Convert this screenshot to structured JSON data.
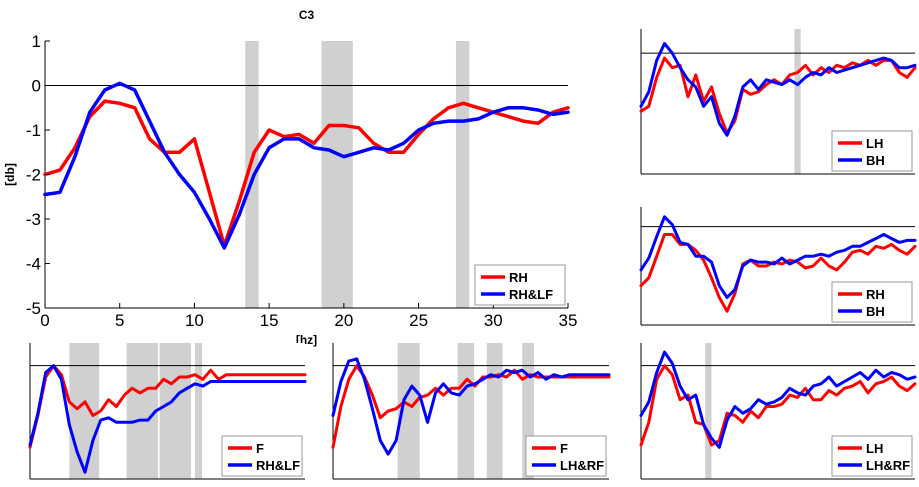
{
  "chart_data": [
    {
      "type": "line",
      "title": "C3",
      "xlabel": "[hz]",
      "ylabel": "[db]",
      "xlim": [
        0,
        35
      ],
      "ylim": [
        -5,
        1
      ],
      "xticks": [
        0,
        5,
        10,
        15,
        20,
        25,
        30,
        35
      ],
      "yticks": [
        1,
        0,
        -1,
        -2,
        -3,
        -4,
        -5
      ],
      "grid": false,
      "legend": "bottom-right",
      "zero_line": 0,
      "shaded_bands": [
        [
          13.4,
          14.3
        ],
        [
          18.5,
          20.6
        ],
        [
          27.5,
          28.4
        ]
      ],
      "x": [
        0,
        1,
        2,
        3,
        4,
        5,
        6,
        7,
        8,
        9,
        10,
        11,
        12,
        13,
        14,
        15,
        16,
        17,
        18,
        19,
        20,
        21,
        22,
        23,
        24,
        25,
        26,
        27,
        28,
        29,
        30,
        31,
        32,
        33,
        34,
        35
      ],
      "series": [
        {
          "name": "RH",
          "color": "#ff0000",
          "values": [
            -2.0,
            -1.9,
            -1.4,
            -0.7,
            -0.35,
            -0.4,
            -0.5,
            -1.2,
            -1.5,
            -1.5,
            -1.2,
            -2.4,
            -3.6,
            -2.6,
            -1.5,
            -1.0,
            -1.15,
            -1.1,
            -1.3,
            -0.9,
            -0.9,
            -0.95,
            -1.3,
            -1.5,
            -1.5,
            -1.1,
            -0.75,
            -0.5,
            -0.4,
            -0.5,
            -0.6,
            -0.7,
            -0.8,
            -0.85,
            -0.6,
            -0.5
          ]
        },
        {
          "name": "RH&LF",
          "color": "#0000ff",
          "values": [
            -2.45,
            -2.4,
            -1.6,
            -0.6,
            -0.1,
            0.05,
            -0.1,
            -0.8,
            -1.5,
            -2.0,
            -2.4,
            -3.0,
            -3.65,
            -2.9,
            -2.0,
            -1.4,
            -1.2,
            -1.2,
            -1.4,
            -1.45,
            -1.6,
            -1.5,
            -1.4,
            -1.45,
            -1.3,
            -1.0,
            -0.85,
            -0.8,
            -0.8,
            -0.75,
            -0.6,
            -0.5,
            -0.5,
            -0.55,
            -0.65,
            -0.6
          ]
        }
      ]
    },
    {
      "type": "line",
      "xlim": [
        0,
        35
      ],
      "ylim": [
        -5,
        1
      ],
      "zero_line": 0,
      "legend": "bottom-right",
      "shaded_bands": [
        [
          19.6,
          20.4
        ]
      ],
      "x": [
        0,
        1,
        2,
        3,
        4,
        5,
        6,
        7,
        8,
        9,
        10,
        11,
        12,
        13,
        14,
        15,
        16,
        17,
        18,
        19,
        20,
        21,
        22,
        23,
        24,
        25,
        26,
        27,
        28,
        29,
        30,
        31,
        32,
        33,
        34,
        35
      ],
      "series": [
        {
          "name": "LH",
          "color": "#ff0000",
          "values": [
            -2.4,
            -2.2,
            -1.0,
            -0.2,
            -0.6,
            -0.5,
            -1.8,
            -0.9,
            -2.0,
            -1.4,
            -2.5,
            -3.3,
            -2.8,
            -1.5,
            -1.7,
            -1.6,
            -1.3,
            -1.1,
            -1.3,
            -0.9,
            -0.8,
            -0.5,
            -0.9,
            -0.6,
            -0.8,
            -0.5,
            -0.6,
            -0.4,
            -0.5,
            -0.3,
            -0.5,
            -0.3,
            -0.3,
            -0.8,
            -1.0,
            -0.6
          ]
        },
        {
          "name": "BH",
          "color": "#0000ff",
          "values": [
            -2.2,
            -1.6,
            -0.3,
            0.4,
            0.0,
            -0.6,
            -1.1,
            -1.4,
            -2.2,
            -1.8,
            -2.9,
            -3.4,
            -2.6,
            -1.4,
            -1.1,
            -1.5,
            -1.1,
            -1.2,
            -1.3,
            -1.1,
            -1.3,
            -1.0,
            -0.8,
            -0.9,
            -0.6,
            -0.8,
            -0.7,
            -0.6,
            -0.5,
            -0.4,
            -0.3,
            -0.2,
            -0.3,
            -0.6,
            -0.6,
            -0.5
          ]
        }
      ]
    },
    {
      "type": "line",
      "xlim": [
        0,
        35
      ],
      "ylim": [
        -5,
        1
      ],
      "zero_line": 0,
      "legend": "bottom-right",
      "shaded_bands": [],
      "x": [
        0,
        1,
        2,
        3,
        4,
        5,
        6,
        7,
        8,
        9,
        10,
        11,
        12,
        13,
        14,
        15,
        16,
        17,
        18,
        19,
        20,
        21,
        22,
        23,
        24,
        25,
        26,
        27,
        28,
        29,
        30,
        31,
        32,
        33,
        34,
        35
      ],
      "series": [
        {
          "name": "RH",
          "color": "#ff0000",
          "values": [
            -3.0,
            -2.6,
            -1.5,
            -0.4,
            -0.4,
            -0.9,
            -0.9,
            -1.2,
            -1.7,
            -2.6,
            -3.6,
            -4.3,
            -3.4,
            -1.9,
            -1.7,
            -2.0,
            -2.0,
            -1.8,
            -1.9,
            -1.7,
            -1.8,
            -2.1,
            -2.0,
            -1.6,
            -2.0,
            -2.2,
            -1.8,
            -1.3,
            -1.2,
            -1.4,
            -1.0,
            -1.1,
            -0.9,
            -1.2,
            -1.4,
            -1.0
          ]
        },
        {
          "name": "BH",
          "color": "#0000ff",
          "values": [
            -2.2,
            -1.6,
            -0.5,
            0.5,
            0.1,
            -0.8,
            -0.9,
            -1.5,
            -1.5,
            -1.8,
            -3.0,
            -3.6,
            -3.2,
            -2.0,
            -1.7,
            -1.8,
            -1.8,
            -1.9,
            -1.6,
            -1.9,
            -1.7,
            -1.5,
            -1.5,
            -1.4,
            -1.5,
            -1.3,
            -1.2,
            -1.0,
            -1.0,
            -0.8,
            -0.6,
            -0.4,
            -0.6,
            -0.8,
            -0.7,
            -0.7
          ]
        }
      ]
    },
    {
      "type": "line",
      "xlim": [
        0,
        35
      ],
      "ylim": [
        -5,
        1
      ],
      "zero_line": 0,
      "legend": "bottom-right",
      "shaded_bands": [
        [
          5,
          8.8
        ],
        [
          12.3,
          16.3
        ],
        [
          16.5,
          20.5
        ],
        [
          21,
          21.9
        ]
      ],
      "x": [
        0,
        1,
        2,
        3,
        4,
        5,
        6,
        7,
        8,
        9,
        10,
        11,
        12,
        13,
        14,
        15,
        16,
        17,
        18,
        19,
        20,
        21,
        22,
        23,
        24,
        25,
        26,
        27,
        28,
        29,
        30,
        31,
        32,
        33,
        34,
        35
      ],
      "series": [
        {
          "name": "F",
          "color": "#ff0000",
          "values": [
            -3.6,
            -2.2,
            -0.5,
            0.0,
            -0.4,
            -1.6,
            -1.9,
            -1.6,
            -2.2,
            -2.0,
            -1.5,
            -1.8,
            -1.3,
            -1.0,
            -1.2,
            -1.0,
            -1.0,
            -0.6,
            -0.8,
            -0.5,
            -0.5,
            -0.4,
            -0.6,
            -0.2,
            -0.6,
            -0.4,
            -0.4,
            -0.4,
            -0.4,
            -0.4,
            -0.4,
            -0.4,
            -0.4,
            -0.4,
            -0.4,
            -0.4
          ]
        },
        {
          "name": "RH&LF",
          "color": "#0000ff",
          "values": [
            -3.5,
            -2.1,
            -0.3,
            0.0,
            -0.6,
            -2.6,
            -3.8,
            -4.7,
            -3.3,
            -2.4,
            -2.3,
            -2.5,
            -2.5,
            -2.5,
            -2.4,
            -2.4,
            -2.0,
            -1.8,
            -1.6,
            -1.2,
            -1.0,
            -0.8,
            -0.9,
            -0.7,
            -0.7,
            -0.7,
            -0.7,
            -0.7,
            -0.7,
            -0.7,
            -0.7,
            -0.7,
            -0.7,
            -0.7,
            -0.7,
            -0.7
          ]
        }
      ]
    },
    {
      "type": "line",
      "xlim": [
        0,
        35
      ],
      "ylim": [
        -5,
        1
      ],
      "zero_line": 0,
      "legend": "bottom-right",
      "shaded_bands": [
        [
          8.2,
          11.0
        ],
        [
          15.8,
          17.9
        ],
        [
          19.5,
          21.5
        ],
        [
          24.0,
          25.5
        ]
      ],
      "x": [
        0,
        1,
        2,
        3,
        4,
        5,
        6,
        7,
        8,
        9,
        10,
        11,
        12,
        13,
        14,
        15,
        16,
        17,
        18,
        19,
        20,
        21,
        22,
        23,
        24,
        25,
        26,
        27,
        28,
        29,
        30,
        31,
        32,
        33,
        34,
        35
      ],
      "series": [
        {
          "name": "F",
          "color": "#ff0000",
          "values": [
            -3.6,
            -1.8,
            -0.6,
            0.0,
            -0.5,
            -1.3,
            -2.3,
            -2.0,
            -1.9,
            -1.6,
            -1.8,
            -1.4,
            -1.3,
            -1.0,
            -1.3,
            -1.0,
            -1.0,
            -0.6,
            -0.9,
            -0.5,
            -0.5,
            -0.4,
            -0.5,
            -0.2,
            -0.6,
            -0.4,
            -0.5,
            -0.5,
            -0.5,
            -0.5,
            -0.5,
            -0.5,
            -0.5,
            -0.5,
            -0.5,
            -0.5
          ]
        },
        {
          "name": "LH&RF",
          "color": "#0000ff",
          "values": [
            -2.2,
            -0.7,
            0.2,
            0.3,
            -0.6,
            -1.9,
            -3.3,
            -3.9,
            -3.3,
            -1.5,
            -0.9,
            -1.3,
            -2.5,
            -1.2,
            -0.8,
            -1.2,
            -1.3,
            -0.9,
            -0.8,
            -0.6,
            -0.4,
            -0.5,
            -0.2,
            -0.3,
            -0.2,
            -0.5,
            -0.3,
            -0.6,
            -0.4,
            -0.5,
            -0.4,
            -0.4,
            -0.4,
            -0.4,
            -0.4,
            -0.4
          ]
        }
      ]
    },
    {
      "type": "line",
      "xlim": [
        0,
        35
      ],
      "ylim": [
        -5,
        1
      ],
      "zero_line": 0,
      "legend": "bottom-right",
      "shaded_bands": [
        [
          8.2,
          9.0
        ]
      ],
      "x": [
        0,
        1,
        2,
        3,
        4,
        5,
        6,
        7,
        8,
        9,
        10,
        11,
        12,
        13,
        14,
        15,
        16,
        17,
        18,
        19,
        20,
        21,
        22,
        23,
        24,
        25,
        26,
        27,
        28,
        29,
        30,
        31,
        32,
        33,
        34,
        35
      ],
      "series": [
        {
          "name": "LH",
          "color": "#ff0000",
          "values": [
            -3.5,
            -2.5,
            -0.6,
            0.0,
            -0.4,
            -1.5,
            -1.3,
            -2.5,
            -2.6,
            -3.5,
            -3.3,
            -2.1,
            -2.2,
            -2.5,
            -2.0,
            -2.3,
            -1.8,
            -1.8,
            -1.7,
            -1.3,
            -1.4,
            -1.0,
            -1.5,
            -1.5,
            -1.1,
            -1.3,
            -1.0,
            -0.9,
            -0.7,
            -1.2,
            -0.8,
            -0.7,
            -0.5,
            -0.9,
            -1.1,
            -0.8
          ]
        },
        {
          "name": "LH&RF",
          "color": "#0000ff",
          "values": [
            -2.2,
            -1.6,
            -0.3,
            0.6,
            0.1,
            -0.9,
            -1.5,
            -1.3,
            -2.6,
            -3.2,
            -3.6,
            -2.4,
            -1.8,
            -2.1,
            -1.9,
            -1.5,
            -1.7,
            -1.6,
            -1.4,
            -1.0,
            -1.2,
            -1.3,
            -0.9,
            -0.8,
            -0.5,
            -0.9,
            -0.7,
            -0.5,
            -0.3,
            -0.6,
            -0.2,
            -0.5,
            -0.3,
            -0.4,
            -0.6,
            -0.5
          ]
        }
      ]
    }
  ]
}
